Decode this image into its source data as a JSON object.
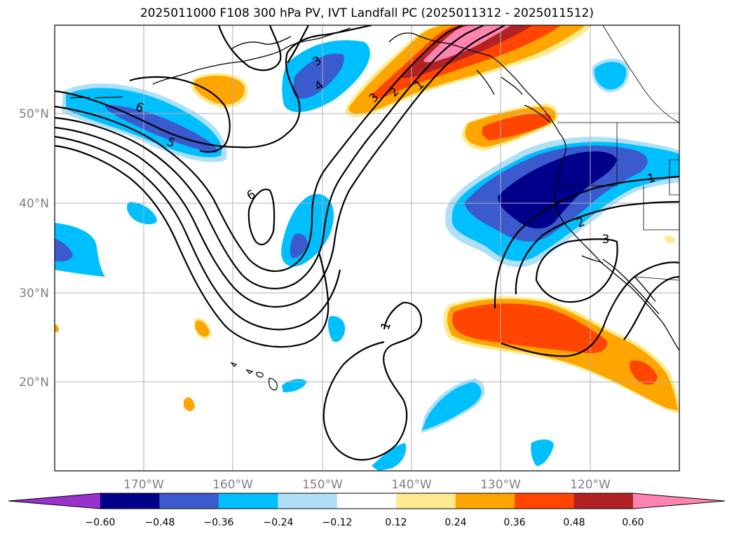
{
  "title": "2025011000 F108 300 hPa PV, IVT Landfall PC (2025011312 - 2025011512)",
  "map": {
    "lat_labels": [
      "50°N",
      "40°N",
      "30°N",
      "20°N"
    ],
    "lon_labels": [
      "170°W",
      "160°W",
      "150°W",
      "140°W",
      "130°W",
      "120°W"
    ],
    "pv_contour_labels": [
      "6",
      "5",
      "6",
      "3",
      "4",
      "3",
      "2",
      "1",
      "1",
      "2",
      "3",
      "1"
    ],
    "colors": {
      "gridline": "#b0b0b0",
      "contour": "#000000",
      "coast": "#000000"
    }
  },
  "colorbar": {
    "ticks": [
      "−0.60",
      "−0.48",
      "−0.36",
      "−0.24",
      "−0.12",
      "0.12",
      "0.24",
      "0.36",
      "0.48",
      "0.60"
    ],
    "colors": [
      "#9932cc",
      "#00008b",
      "#3a5acd",
      "#00bfff",
      "#b0e0f8",
      "#ffffff",
      "#fdeb8f",
      "#ffa500",
      "#ff4500",
      "#b22222",
      "#ff85b0"
    ]
  }
}
